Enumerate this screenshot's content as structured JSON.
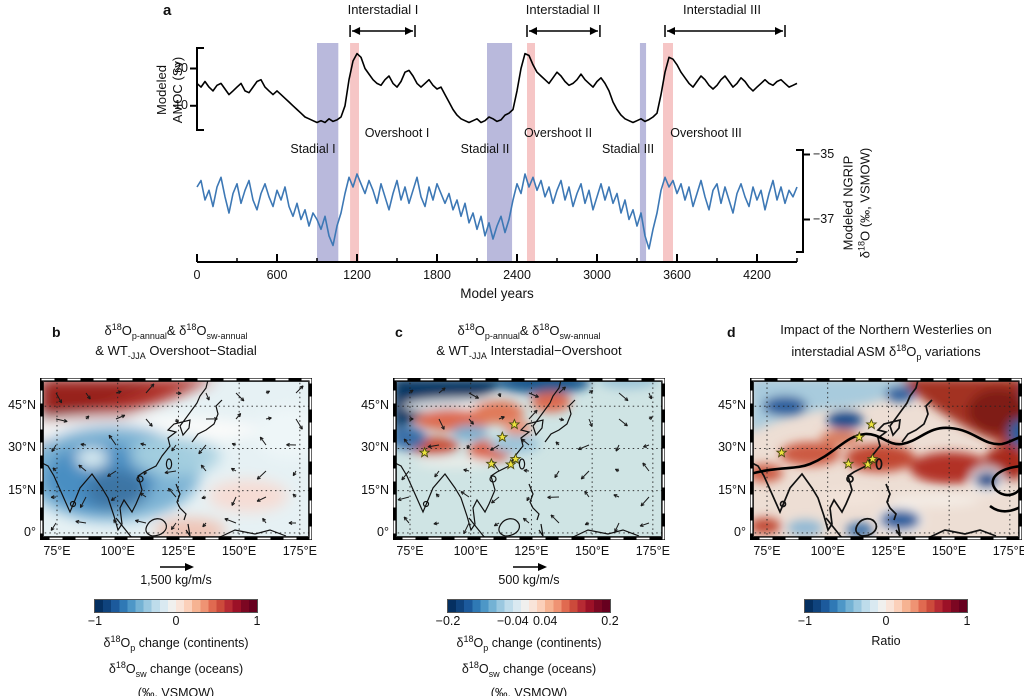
{
  "panel_a": {
    "label": "a",
    "amoc_axis": {
      "line1": "Modeled",
      "line2": "AMOC (Sv)",
      "ticks": [
        {
          "label": "20",
          "value": 20
        },
        {
          "label": "10",
          "value": 10
        }
      ]
    },
    "ngrip_axis": {
      "line1": "Modeled NGRIP",
      "line2_parts": [
        {
          "t": "δ"
        },
        {
          "sup": "18"
        },
        {
          "t": "O (‰, VSMOW)"
        }
      ],
      "ticks": [
        {
          "label": "−35",
          "value": -35
        },
        {
          "label": "−37",
          "value": -37
        }
      ]
    },
    "x_axis": {
      "label": "Model years",
      "ticks": [
        {
          "label": "0",
          "value": 0
        },
        {
          "label": "600",
          "value": 600
        },
        {
          "label": "1200",
          "value": 1200
        },
        {
          "label": "1800",
          "value": 1800
        },
        {
          "label": "2400",
          "value": 2400
        },
        {
          "label": "3000",
          "value": 3000
        },
        {
          "label": "3600",
          "value": 3600
        },
        {
          "label": "4200",
          "value": 4200
        }
      ]
    },
    "events": {
      "interstadials": [
        {
          "label": "Interstadial I",
          "start": 1148,
          "end": 1635
        },
        {
          "label": "Interstadial II",
          "start": 2475,
          "end": 3022
        },
        {
          "label": "Interstadial III",
          "start": 3510,
          "end": 4410
        }
      ],
      "stadials": [
        {
          "label": "Stadial I",
          "start": 900,
          "end": 1060
        },
        {
          "label": "Stadial II",
          "start": 2175,
          "end": 2363
        },
        {
          "label": "Stadial III",
          "start": 3322,
          "end": 3368
        }
      ],
      "overshoots": [
        {
          "label": "Overshoot I",
          "start": 1148,
          "end": 1215
        },
        {
          "label": "Overshoot II",
          "start": 2475,
          "end": 2535
        },
        {
          "label": "Overshoot III",
          "start": 3495,
          "end": 3570
        }
      ]
    },
    "band_colors": {
      "stadial": "#b9b9dc",
      "overshoot": "#f6c6c6"
    },
    "series": {
      "amoc": {
        "name": "Modeled AMOC",
        "units": "Sv",
        "color": "#000000",
        "year_start": 0,
        "year_step": 30,
        "values": [
          16,
          15,
          16.5,
          15,
          14,
          15.5,
          16,
          14.5,
          13,
          14,
          15,
          16,
          14,
          13.5,
          15,
          16.5,
          17,
          15,
          14,
          13,
          14,
          13,
          12,
          11,
          10,
          9,
          8,
          7,
          6.5,
          6,
          5.5,
          6,
          5.5,
          6.5,
          5.8,
          6.2,
          7,
          10,
          17,
          22,
          24,
          23,
          20,
          18.5,
          17,
          16,
          15.5,
          17,
          18,
          16,
          15,
          16.5,
          19,
          19.5,
          18,
          16,
          15,
          16,
          17,
          15.5,
          14.5,
          15,
          13,
          11,
          9,
          7.5,
          6.5,
          6,
          5.5,
          6,
          6.5,
          5.5,
          6,
          7,
          6.5,
          5.8,
          6.2,
          7.5,
          8,
          9,
          14,
          20,
          24,
          23.5,
          21,
          19,
          18,
          17,
          16,
          17.5,
          19,
          18,
          16.5,
          15.5,
          16,
          17,
          18.5,
          17,
          16,
          15,
          16.5,
          17.5,
          16,
          14,
          11,
          9,
          7.5,
          6.5,
          6,
          5.5,
          6,
          6.5,
          5.8,
          6.3,
          7,
          8,
          13,
          19,
          23,
          22.5,
          21,
          19,
          17.5,
          16,
          15,
          16.5,
          18,
          17,
          15.5,
          14.5,
          15.5,
          17,
          18,
          16.5,
          15,
          16,
          17.5,
          16.5,
          15,
          14,
          15,
          16,
          17,
          16,
          15.5,
          16.5,
          17,
          16,
          15,
          15.5,
          16
        ]
      },
      "ngrip": {
        "name": "Modeled NGRIP δ18O",
        "units": "‰, VSMOW",
        "color": "#3d78b5",
        "year_start": 0,
        "year_step": 30,
        "values": [
          -36,
          -35.8,
          -36.4,
          -36.1,
          -36.6,
          -36,
          -35.7,
          -36.3,
          -36.8,
          -36.2,
          -35.9,
          -36.5,
          -36.1,
          -35.8,
          -36.4,
          -36.7,
          -36.2,
          -35.9,
          -36.3,
          -36.6,
          -36.1,
          -36.4,
          -36,
          -36.6,
          -36.9,
          -36.5,
          -37,
          -36.7,
          -37.2,
          -36.8,
          -37,
          -37.3,
          -36.9,
          -37.5,
          -37.8,
          -37.2,
          -36.8,
          -36.2,
          -35.7,
          -36,
          -35.6,
          -35.9,
          -36.2,
          -35.8,
          -36.1,
          -36.5,
          -35.9,
          -36.3,
          -36.7,
          -36.2,
          -35.8,
          -36.4,
          -36,
          -36.5,
          -36.1,
          -35.7,
          -36.3,
          -36.6,
          -36,
          -36.4,
          -35.9,
          -36.2,
          -36.5,
          -36.2,
          -36.7,
          -36.4,
          -36.9,
          -36.5,
          -37.1,
          -36.8,
          -37.3,
          -36.9,
          -37.5,
          -37.1,
          -37.6,
          -37.2,
          -36.9,
          -37.4,
          -37,
          -36.4,
          -35.9,
          -36.2,
          -35.6,
          -36,
          -35.7,
          -36.1,
          -35.8,
          -36.3,
          -36,
          -36.5,
          -36.1,
          -35.8,
          -36.4,
          -36,
          -36.6,
          -36.2,
          -35.9,
          -36.5,
          -36.1,
          -36.7,
          -36.3,
          -35.9,
          -36.4,
          -36,
          -36.5,
          -36.2,
          -36.8,
          -36.4,
          -37,
          -36.7,
          -37.2,
          -36.8,
          -37.5,
          -37.9,
          -37.3,
          -36.8,
          -36.1,
          -35.7,
          -36,
          -35.8,
          -36.2,
          -35.9,
          -36.4,
          -36,
          -36.6,
          -36.2,
          -35.8,
          -36.3,
          -36.7,
          -36.1,
          -35.9,
          -36.5,
          -36,
          -36.4,
          -36.8,
          -36.2,
          -35.9,
          -36.3,
          -36.6,
          -36,
          -36.4,
          -36.1,
          -36.7,
          -36.2,
          -35.8,
          -36.4,
          -36,
          -36.5,
          -36.1,
          -36.3,
          -36
        ]
      }
    }
  },
  "colorbar_colors": [
    "#053061",
    "#0f437d",
    "#1c5a9c",
    "#2f79b5",
    "#4d97c7",
    "#74b2d4",
    "#9ac8e0",
    "#bedceb",
    "#d9e9f1",
    "#f0f0ee",
    "#f9e4d9",
    "#fbd0ba",
    "#f6b392",
    "#ef9373",
    "#e06a50",
    "#cc4a3b",
    "#b72a33",
    "#9c1127",
    "#7c0722",
    "#67001f"
  ],
  "maps": [
    {
      "letter": "b",
      "title_line1_parts": [
        {
          "t": "δ"
        },
        {
          "sup": "18"
        },
        {
          "t": "O"
        },
        {
          "sub": "p-annual"
        },
        {
          "t": "& δ"
        },
        {
          "sup": "18"
        },
        {
          "t": "O"
        },
        {
          "sub": "sw-annual"
        }
      ],
      "title_line2_parts": [
        {
          "t": "& WT"
        },
        {
          "sub": "-JJA"
        },
        {
          "t": " Overshoot−Stadial"
        }
      ],
      "lon_ticks": [
        {
          "label": "75°E",
          "lon": 75
        },
        {
          "label": "100°E",
          "lon": 100
        },
        {
          "label": "125°E",
          "lon": 125
        },
        {
          "label": "150°E",
          "lon": 150
        },
        {
          "label": "175°E",
          "lon": 175
        }
      ],
      "lat_ticks": [
        {
          "label": "45°N",
          "lat": 45
        },
        {
          "label": "30°N",
          "lat": 30
        },
        {
          "label": "15°N",
          "lat": 15
        },
        {
          "label": "0°",
          "lat": 0
        }
      ],
      "arrow_scale": "1,500 kg/m/s",
      "has_arrows": true,
      "stars": [],
      "colorbar": {
        "ticks": [
          {
            "label": "−1",
            "pos": 0
          },
          {
            "label": "0",
            "pos": 0.5
          },
          {
            "label": "1",
            "pos": 1
          }
        ],
        "captions": [
          [
            {
              "t": "δ"
            },
            {
              "sup": "18"
            },
            {
              "t": "O"
            },
            {
              "sub": "p"
            },
            {
              "t": " change (continents)"
            }
          ],
          [
            {
              "t": "δ"
            },
            {
              "sup": "18"
            },
            {
              "t": "O"
            },
            {
              "sub": "sw"
            },
            {
              "t": " change (oceans)"
            }
          ],
          [
            {
              "t": "(‰, VSMOW)"
            }
          ]
        ]
      }
    },
    {
      "letter": "c",
      "title_line1_parts": [
        {
          "t": "δ"
        },
        {
          "sup": "18"
        },
        {
          "t": "O"
        },
        {
          "sub": "p-annual"
        },
        {
          "t": "& δ"
        },
        {
          "sup": "18"
        },
        {
          "t": "O"
        },
        {
          "sub": "sw-annual"
        }
      ],
      "title_line2_parts": [
        {
          "t": "& WT"
        },
        {
          "sub": "-JJA"
        },
        {
          "t": " Interstadial−Overshoot"
        }
      ],
      "lon_ticks": [
        {
          "label": "75°E",
          "lon": 75
        },
        {
          "label": "100°E",
          "lon": 100
        },
        {
          "label": "125°E",
          "lon": 125
        },
        {
          "label": "150°E",
          "lon": 150
        },
        {
          "label": "175°E",
          "lon": 175
        }
      ],
      "lat_ticks": [
        {
          "label": "45°N",
          "lat": 45
        },
        {
          "label": "30°N",
          "lat": 30
        },
        {
          "label": "15°N",
          "lat": 15
        },
        {
          "label": "0°",
          "lat": 0
        }
      ],
      "arrow_scale": "500 kg/m/s",
      "has_arrows": true,
      "stars": [
        [
          118,
          38.5
        ],
        [
          113,
          34
        ],
        [
          81,
          28.5
        ],
        [
          108.5,
          24.5
        ],
        [
          116.5,
          24.3
        ],
        [
          118.5,
          26.2
        ]
      ],
      "colorbar": {
        "ticks": [
          {
            "label": "−0.2",
            "pos": 0
          },
          {
            "label": "−0.04",
            "pos": 0.4
          },
          {
            "label": "0.04",
            "pos": 0.6
          },
          {
            "label": "0.2",
            "pos": 1
          }
        ],
        "captions": [
          [
            {
              "t": "δ"
            },
            {
              "sup": "18"
            },
            {
              "t": "O"
            },
            {
              "sub": "p"
            },
            {
              "t": " change (continents)"
            }
          ],
          [
            {
              "t": "δ"
            },
            {
              "sup": "18"
            },
            {
              "t": "O"
            },
            {
              "sub": "sw"
            },
            {
              "t": " change (oceans)"
            }
          ],
          [
            {
              "t": "(‰, VSMOW)"
            }
          ]
        ]
      }
    },
    {
      "letter": "d",
      "title_line1_parts": [
        {
          "t": "Impact of the Northern Westerlies on"
        }
      ],
      "title_line2_parts": [
        {
          "t": "interstadial ASM δ"
        },
        {
          "sup": "18"
        },
        {
          "t": "O"
        },
        {
          "sub": "p"
        },
        {
          "t": " variations"
        }
      ],
      "lon_ticks": [
        {
          "label": "75°E",
          "lon": 75
        },
        {
          "label": "100°E",
          "lon": 100
        },
        {
          "label": "125°E",
          "lon": 125
        },
        {
          "label": "150°E",
          "lon": 150
        },
        {
          "label": "175°E",
          "lon": 175
        }
      ],
      "lat_ticks": [
        {
          "label": "45°N",
          "lat": 45
        },
        {
          "label": "30°N",
          "lat": 30
        },
        {
          "label": "15°N",
          "lat": 15
        },
        {
          "label": "0°",
          "lat": 0
        }
      ],
      "arrow_scale": null,
      "has_arrows": false,
      "stars": [
        [
          118,
          38.5
        ],
        [
          113,
          34
        ],
        [
          81,
          28.5
        ],
        [
          108.5,
          24.5
        ],
        [
          116.5,
          24.3
        ],
        [
          118.5,
          26.2
        ]
      ],
      "colorbar": {
        "ticks": [
          {
            "label": "−1",
            "pos": 0
          },
          {
            "label": "0",
            "pos": 0.5
          },
          {
            "label": "1",
            "pos": 1
          }
        ],
        "captions": [
          [
            {
              "t": "Ratio"
            }
          ]
        ]
      }
    }
  ]
}
